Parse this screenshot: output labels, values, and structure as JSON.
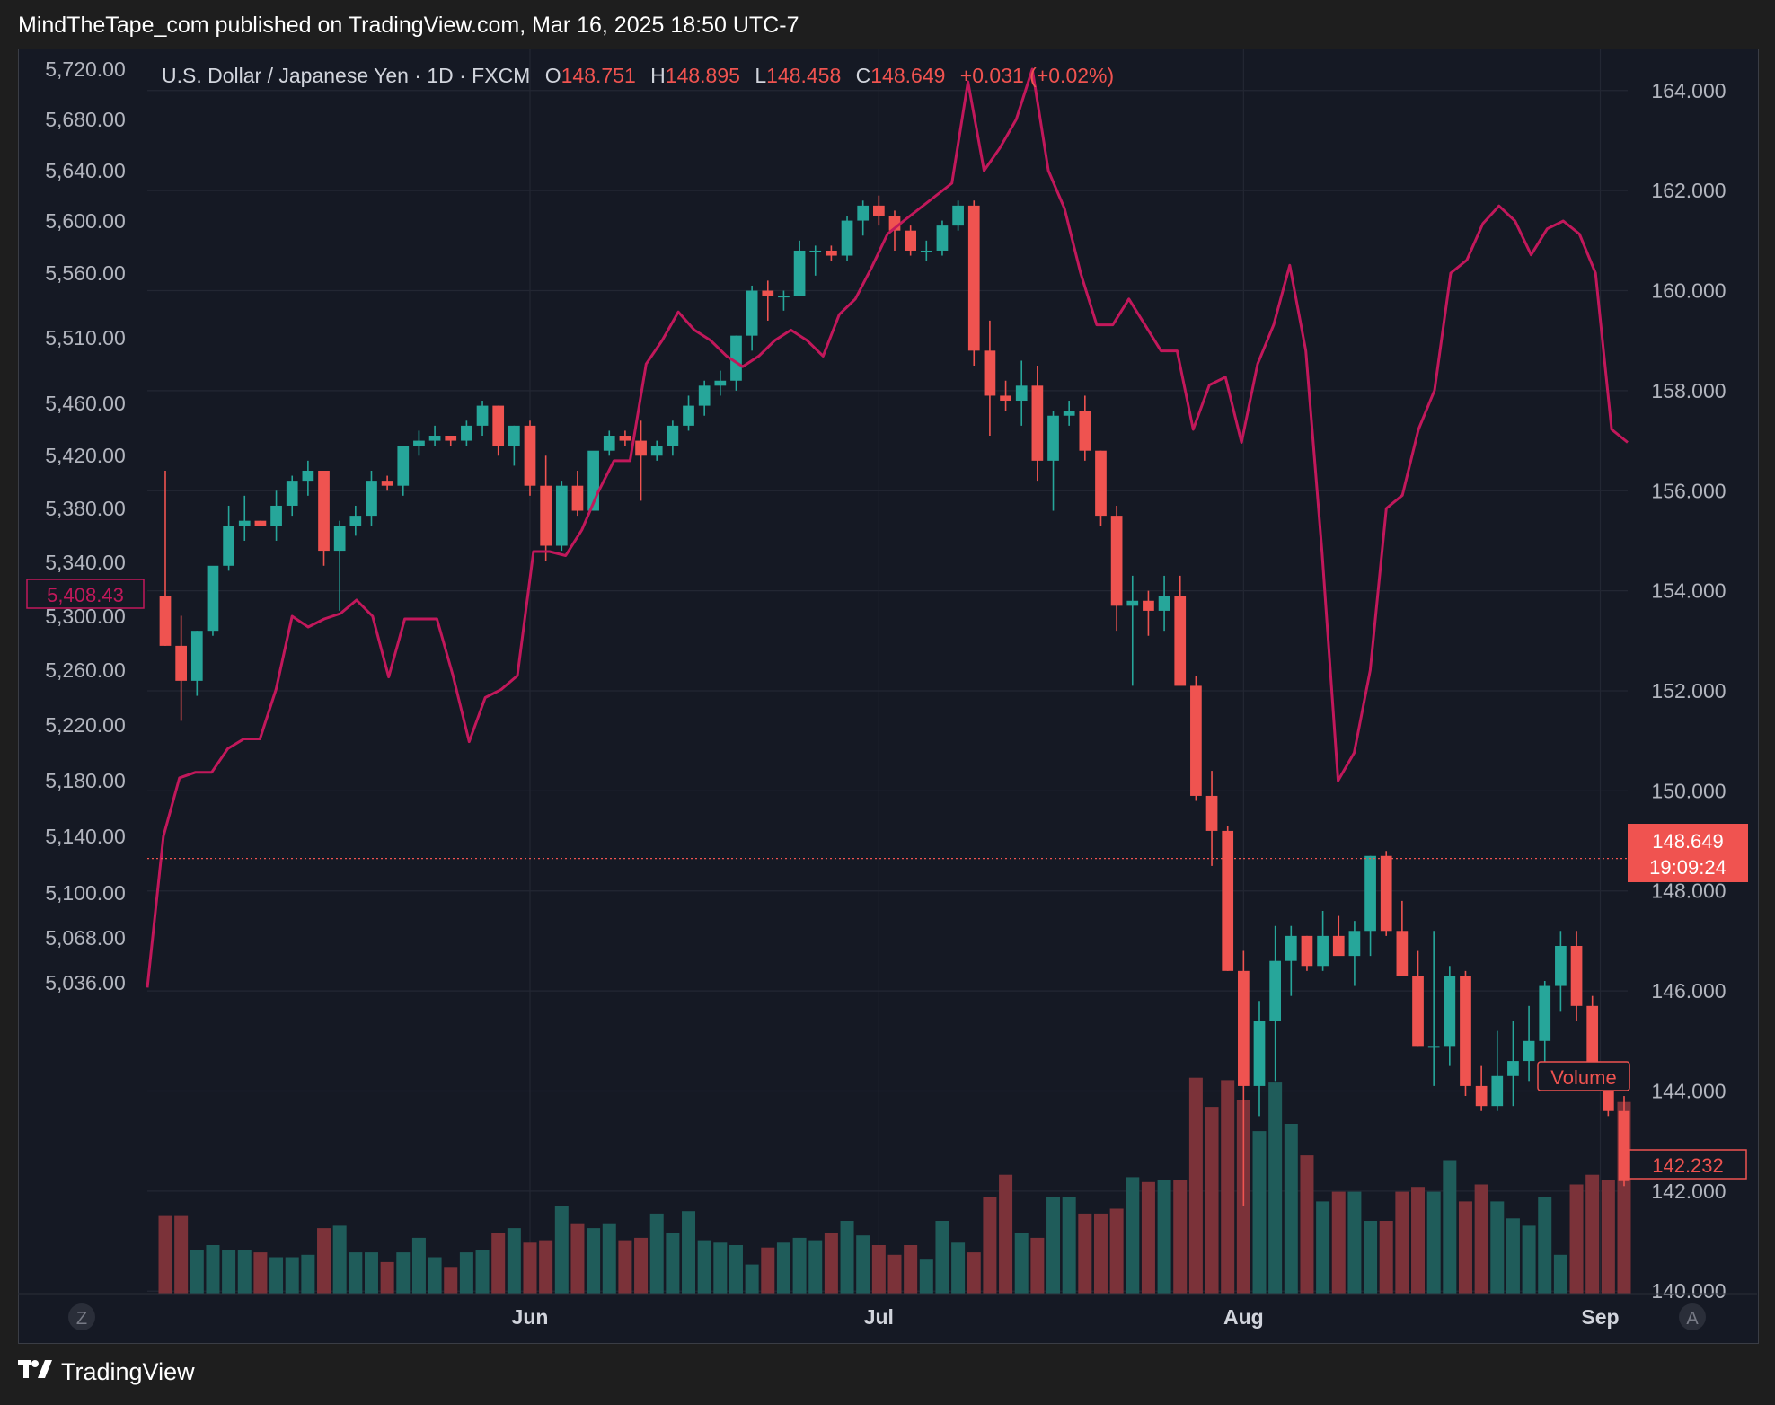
{
  "header": {
    "published_by": "MindTheTape_com published on TradingView.com, Mar 16, 2025 18:50 UTC-7"
  },
  "legend": {
    "symbol": "U.S. Dollar / Japanese Yen · 1D · FXCM",
    "o_label": "O",
    "o_value": "148.751",
    "h_label": "H",
    "h_value": "148.895",
    "l_label": "L",
    "l_value": "148.458",
    "c_label": "C",
    "c_value": "148.649",
    "change": "+0.031 (+0.02%)"
  },
  "footer": {
    "brand": "TradingView"
  },
  "buttons": {
    "left": "Z",
    "right": "A"
  },
  "colors": {
    "up": "#26a69a",
    "down": "#ef5350",
    "line": "#c2185b",
    "vol_up": "#1f5c5a",
    "vol_down": "#7b3239",
    "bg": "#151924"
  },
  "chart_data": {
    "type": "candlestick",
    "x_axis": {
      "labels": [
        "Jun",
        "Jul",
        "Aug",
        "Sep"
      ]
    },
    "left_axis": {
      "ticks": [
        "5,720.00",
        "5,680.00",
        "5,640.00",
        "5,600.00",
        "5,560.00",
        "5,510.00",
        "5,460.00",
        "5,420.00",
        "5,380.00",
        "5,340.00",
        "5,300.00",
        "5,260.00",
        "5,220.00",
        "5,180.00",
        "5,140.00",
        "5,100.00",
        "5,068.00",
        "5,036.00"
      ],
      "current_label": "5,408.43"
    },
    "right_axis": {
      "ticks": [
        "164.000",
        "162.000",
        "160.000",
        "158.000",
        "156.000",
        "154.000",
        "152.000",
        "150.000",
        "148.000",
        "146.000",
        "144.000",
        "142.000",
        "140.000"
      ],
      "ylim": [
        139.95,
        164.05
      ],
      "price_label": "148.649",
      "countdown_label": "19:09:24",
      "last_label": "142.232",
      "volume_label": "Volume"
    },
    "series": [
      {
        "name": "U.S. Dollar / Japanese Yen",
        "candles_ohlc": [
          [
            153.9,
            156.4,
            152.9,
            152.9
          ],
          [
            152.9,
            153.5,
            151.4,
            152.2
          ],
          [
            152.2,
            153.2,
            151.9,
            153.2
          ],
          [
            153.2,
            154.3,
            153.1,
            154.5
          ],
          [
            154.5,
            155.7,
            154.4,
            155.3
          ],
          [
            155.3,
            155.9,
            155.0,
            155.4
          ],
          [
            155.4,
            155.4,
            155.3,
            155.3
          ],
          [
            155.3,
            156.0,
            155.0,
            155.7
          ],
          [
            155.7,
            156.3,
            155.5,
            156.2
          ],
          [
            156.2,
            156.6,
            155.9,
            156.4
          ],
          [
            156.4,
            156.4,
            154.5,
            154.8
          ],
          [
            154.8,
            155.4,
            153.6,
            155.3
          ],
          [
            155.3,
            155.7,
            155.1,
            155.5
          ],
          [
            155.5,
            156.4,
            155.3,
            156.2
          ],
          [
            156.2,
            156.3,
            156.0,
            156.1
          ],
          [
            156.1,
            156.9,
            155.9,
            156.9
          ],
          [
            156.9,
            157.2,
            156.7,
            157.0
          ],
          [
            157.0,
            157.3,
            156.9,
            157.1
          ],
          [
            157.1,
            157.1,
            156.9,
            157.0
          ],
          [
            157.0,
            157.4,
            156.9,
            157.3
          ],
          [
            157.3,
            157.8,
            157.1,
            157.7
          ],
          [
            157.7,
            157.7,
            156.7,
            156.9
          ],
          [
            156.9,
            157.3,
            156.5,
            157.3
          ],
          [
            157.3,
            157.4,
            155.9,
            156.1
          ],
          [
            156.1,
            156.7,
            154.6,
            154.9
          ],
          [
            154.9,
            156.2,
            154.8,
            156.1
          ],
          [
            156.1,
            156.4,
            155.5,
            155.6
          ],
          [
            155.6,
            156.7,
            155.6,
            156.8
          ],
          [
            156.8,
            157.2,
            156.7,
            157.1
          ],
          [
            157.1,
            157.2,
            156.9,
            157.0
          ],
          [
            157.0,
            157.4,
            155.8,
            156.7
          ],
          [
            156.7,
            157.0,
            156.6,
            156.9
          ],
          [
            156.9,
            157.4,
            156.7,
            157.3
          ],
          [
            157.3,
            157.9,
            157.2,
            157.7
          ],
          [
            157.7,
            158.2,
            157.5,
            158.1
          ],
          [
            158.1,
            158.4,
            157.9,
            158.2
          ],
          [
            158.2,
            159.1,
            158.0,
            159.1
          ],
          [
            159.1,
            160.1,
            158.8,
            160.0
          ],
          [
            160.0,
            160.2,
            159.4,
            159.9
          ],
          [
            159.9,
            160.0,
            159.6,
            159.9
          ],
          [
            159.9,
            161.0,
            159.9,
            160.8
          ],
          [
            160.8,
            160.9,
            160.3,
            160.8
          ],
          [
            160.8,
            160.9,
            160.6,
            160.7
          ],
          [
            160.7,
            161.5,
            160.6,
            161.4
          ],
          [
            161.4,
            161.8,
            161.1,
            161.7
          ],
          [
            161.7,
            161.9,
            161.3,
            161.5
          ],
          [
            161.5,
            161.6,
            160.8,
            161.2
          ],
          [
            161.2,
            161.3,
            160.7,
            160.8
          ],
          [
            160.8,
            161.0,
            160.6,
            160.8
          ],
          [
            160.8,
            161.4,
            160.7,
            161.3
          ],
          [
            161.3,
            161.8,
            161.2,
            161.7
          ],
          [
            161.7,
            161.8,
            158.5,
            158.8
          ],
          [
            158.8,
            159.4,
            157.1,
            157.9
          ],
          [
            157.9,
            158.2,
            157.6,
            157.8
          ],
          [
            157.8,
            158.6,
            157.3,
            158.1
          ],
          [
            158.1,
            158.5,
            156.2,
            156.6
          ],
          [
            156.6,
            157.6,
            155.6,
            157.5
          ],
          [
            157.5,
            157.8,
            157.3,
            157.6
          ],
          [
            157.6,
            157.9,
            156.6,
            156.8
          ],
          [
            156.8,
            156.8,
            155.3,
            155.5
          ],
          [
            155.5,
            155.7,
            153.2,
            153.7
          ],
          [
            153.7,
            154.3,
            152.1,
            153.8
          ],
          [
            153.8,
            154.0,
            153.1,
            153.6
          ],
          [
            153.6,
            154.3,
            153.2,
            153.9
          ],
          [
            153.9,
            154.3,
            152.4,
            152.1
          ],
          [
            152.1,
            152.3,
            149.8,
            149.9
          ],
          [
            149.9,
            150.4,
            148.5,
            149.2
          ],
          [
            149.2,
            149.3,
            146.4,
            146.4
          ],
          [
            146.4,
            146.8,
            141.7,
            144.1
          ],
          [
            144.1,
            145.8,
            143.5,
            145.4
          ],
          [
            145.4,
            147.3,
            144.2,
            146.6
          ],
          [
            146.6,
            147.3,
            145.9,
            147.1
          ],
          [
            147.1,
            147.1,
            146.4,
            146.5
          ],
          [
            146.5,
            147.6,
            146.4,
            147.1
          ],
          [
            147.1,
            147.5,
            146.8,
            146.7
          ],
          [
            146.7,
            147.4,
            146.1,
            147.2
          ],
          [
            147.2,
            148.7,
            146.7,
            148.7
          ],
          [
            148.7,
            148.8,
            147.1,
            147.2
          ],
          [
            147.2,
            147.8,
            146.4,
            146.3
          ],
          [
            146.3,
            146.8,
            144.9,
            144.9
          ],
          [
            144.9,
            147.2,
            144.1,
            144.9
          ],
          [
            144.9,
            146.5,
            144.5,
            146.3
          ],
          [
            146.3,
            146.4,
            143.9,
            144.1
          ],
          [
            144.1,
            144.5,
            143.6,
            143.7
          ],
          [
            143.7,
            145.2,
            143.6,
            144.3
          ],
          [
            144.3,
            145.4,
            143.7,
            144.6
          ],
          [
            144.6,
            145.7,
            144.2,
            145.0
          ],
          [
            145.0,
            146.2,
            144.2,
            146.1
          ],
          [
            146.1,
            147.2,
            145.6,
            146.9
          ],
          [
            146.9,
            147.2,
            145.4,
            145.7
          ],
          [
            145.7,
            145.9,
            144.2,
            144.2
          ],
          [
            144.2,
            144.4,
            143.5,
            143.6
          ],
          [
            143.6,
            143.9,
            142.1,
            142.2
          ]
        ]
      },
      {
        "name": "Volume",
        "relative_values": [
          0.32,
          0.32,
          0.18,
          0.2,
          0.18,
          0.18,
          0.17,
          0.15,
          0.15,
          0.16,
          0.27,
          0.28,
          0.17,
          0.17,
          0.13,
          0.17,
          0.23,
          0.15,
          0.11,
          0.17,
          0.18,
          0.25,
          0.27,
          0.21,
          0.22,
          0.36,
          0.29,
          0.27,
          0.29,
          0.22,
          0.23,
          0.33,
          0.25,
          0.34,
          0.22,
          0.21,
          0.2,
          0.12,
          0.19,
          0.21,
          0.23,
          0.22,
          0.25,
          0.3,
          0.24,
          0.2,
          0.16,
          0.2,
          0.14,
          0.3,
          0.21,
          0.17,
          0.4,
          0.49,
          0.25,
          0.23,
          0.4,
          0.4,
          0.33,
          0.33,
          0.35,
          0.48,
          0.46,
          0.47,
          0.47,
          0.89,
          0.77,
          0.88,
          0.8,
          0.67,
          0.87,
          0.7,
          0.57,
          0.38,
          0.42,
          0.42,
          0.3,
          0.3,
          0.42,
          0.44,
          0.42,
          0.55,
          0.38,
          0.45,
          0.38,
          0.31,
          0.28,
          0.4,
          0.16,
          0.45,
          0.49,
          0.47,
          0.79
        ]
      },
      {
        "name": "Comparison",
        "left_axis_values": [
          5033,
          5140,
          5182,
          5186,
          5186,
          5203,
          5210,
          5210,
          5246,
          5300,
          5292,
          5298,
          5302,
          5312,
          5300,
          5255,
          5298,
          5298,
          5298,
          5256,
          5208,
          5240,
          5246,
          5256,
          5348,
          5348,
          5345,
          5364,
          5392,
          5416,
          5416,
          5490,
          5508,
          5530,
          5516,
          5508,
          5496,
          5488,
          5496,
          5508,
          5516,
          5508,
          5496,
          5528,
          5540,
          5564,
          5590,
          5600,
          5610,
          5620,
          5630,
          5710,
          5640,
          5658,
          5680,
          5720,
          5640,
          5610,
          5560,
          5520,
          5520,
          5540,
          5520,
          5500,
          5500,
          5440,
          5474,
          5480,
          5430,
          5490,
          5520,
          5566,
          5500,
          5348,
          5180,
          5200,
          5260,
          5380,
          5390,
          5440,
          5470,
          5560,
          5570,
          5598,
          5612,
          5600,
          5574,
          5594,
          5600,
          5590,
          5560,
          5440,
          5430
        ]
      }
    ]
  }
}
